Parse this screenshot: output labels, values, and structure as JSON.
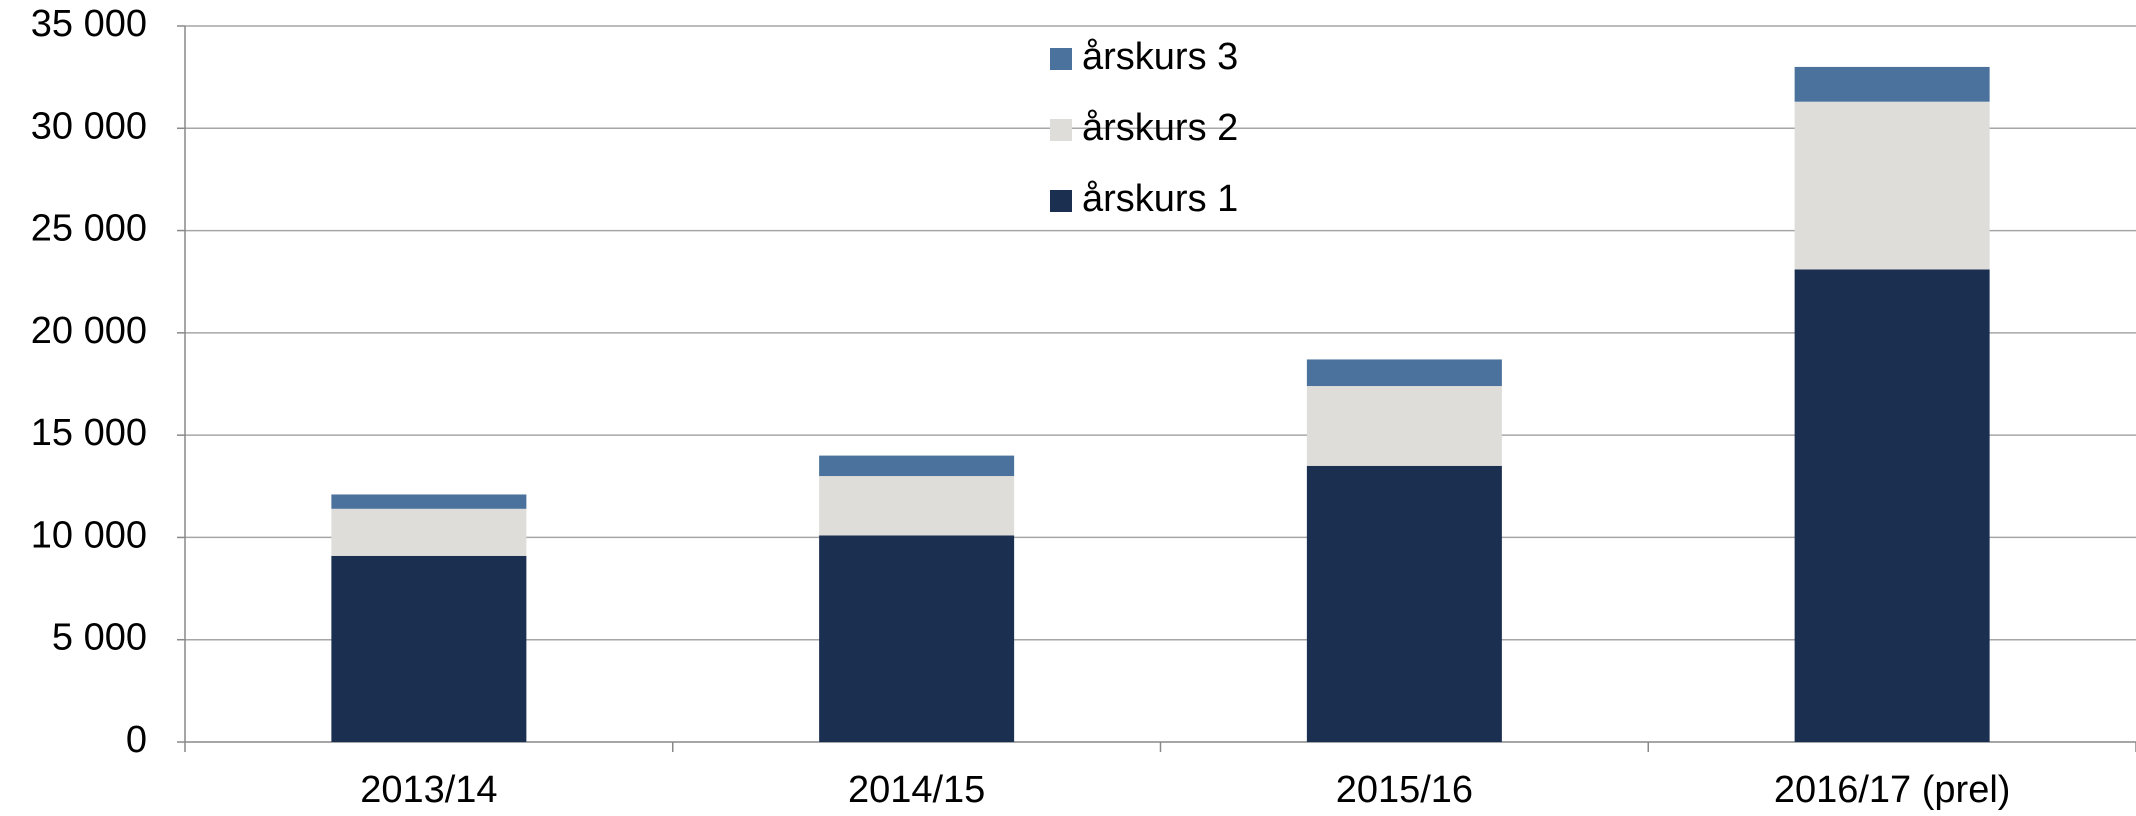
{
  "chart_data": {
    "type": "stacked_bar",
    "categories": [
      "2013/14",
      "2014/15",
      "2015/16",
      "2016/17 (prel)"
    ],
    "series": [
      {
        "name": "årskurs 1",
        "color": "#1b2f50",
        "values": [
          9100,
          10100,
          13500,
          23100
        ]
      },
      {
        "name": "årskurs 2",
        "color": "#dfddd9",
        "values": [
          2300,
          2900,
          3900,
          8200
        ]
      },
      {
        "name": "årskurs 3",
        "color": "#4a729c",
        "values": [
          700,
          1000,
          1300,
          1700
        ]
      }
    ],
    "ylim": [
      0,
      35000
    ],
    "yticks": [
      0,
      {
        "value": 5000,
        "label": "5 000"
      },
      {
        "value": 10000,
        "label": "10 000"
      },
      {
        "value": 15000,
        "label": "15 000"
      },
      {
        "value": 20000,
        "label": "20 000"
      },
      {
        "value": 25000,
        "label": "25 000"
      },
      {
        "value": 30000,
        "label": "30 000"
      },
      {
        "value": 35000,
        "label": "35 000"
      }
    ],
    "grid": true,
    "legend": "top"
  }
}
